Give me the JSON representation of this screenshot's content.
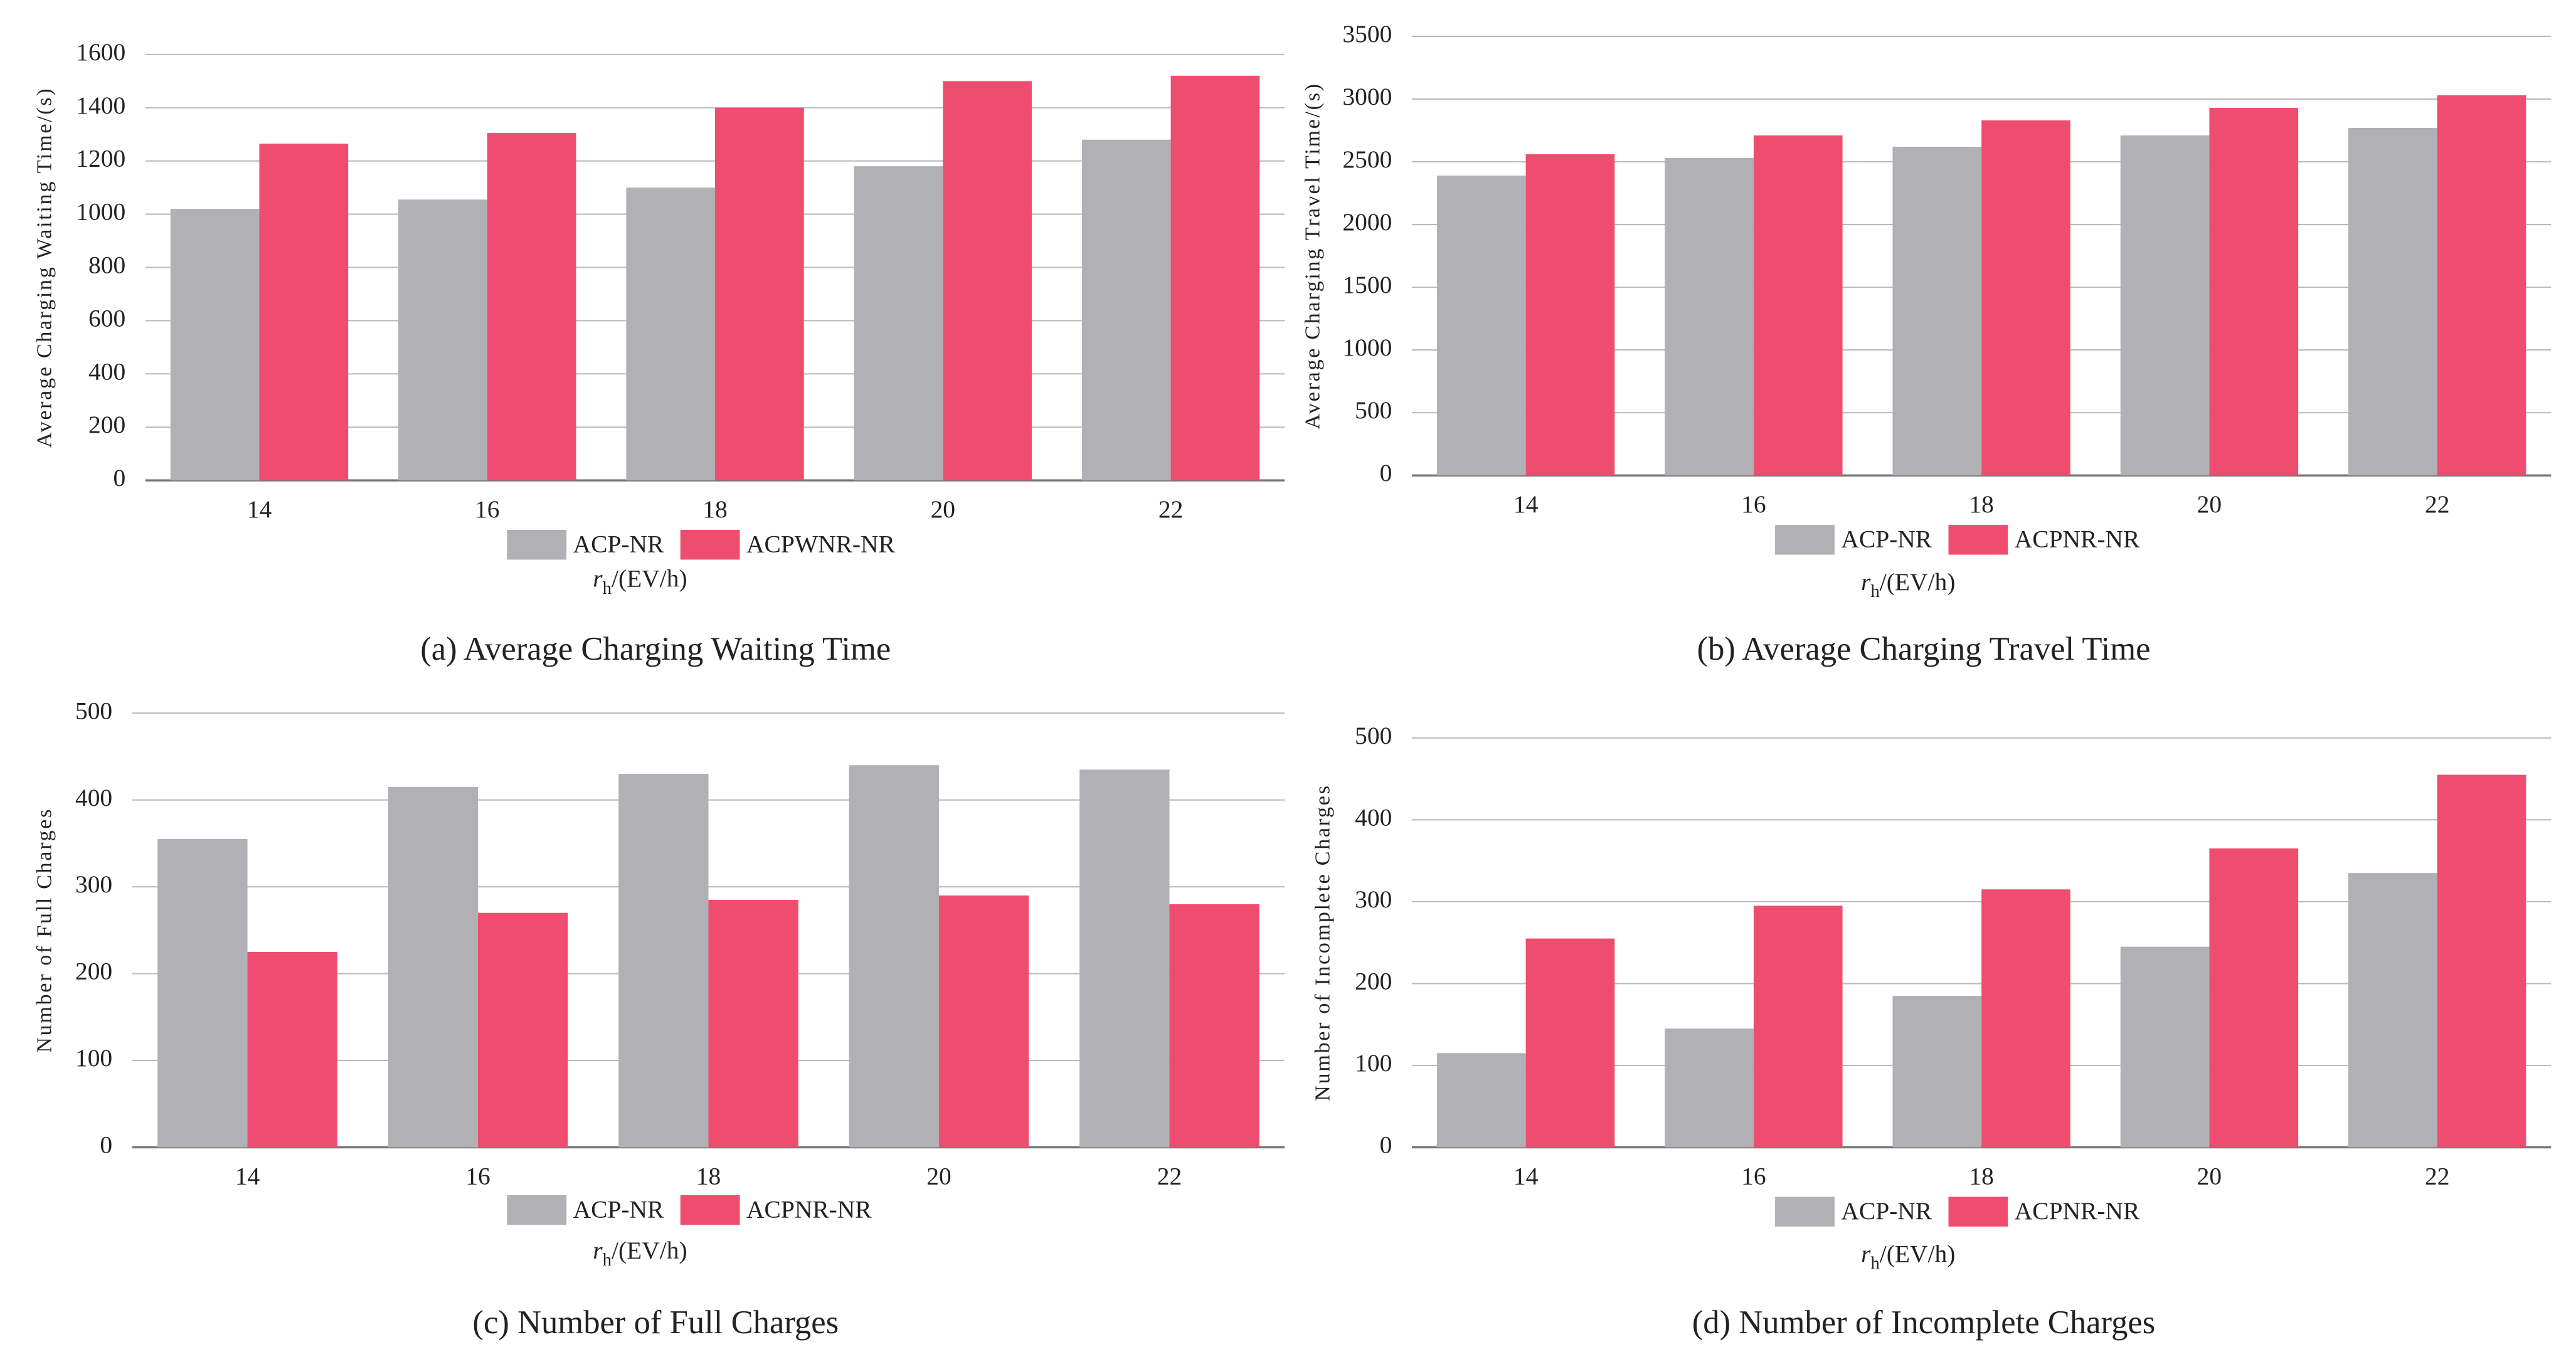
{
  "chart_data": [
    {
      "type": "bar",
      "caption": "(a) Average Charging Waiting Time",
      "y_label": "Average Charging Waiting Time/(s)",
      "x_label_var": "r",
      "x_label_sub": "h",
      "x_label_unit": "/(EV/h)",
      "categories": [
        "14",
        "16",
        "18",
        "20",
        "22"
      ],
      "series": [
        {
          "name": "ACP-NR",
          "color": "#b1b0b5",
          "values": [
            1020,
            1055,
            1100,
            1180,
            1280
          ]
        },
        {
          "name": "ACPWNR-NR",
          "color": "#ee4d6f",
          "values": [
            1265,
            1305,
            1400,
            1500,
            1520
          ]
        }
      ],
      "ylim": [
        0,
        1600
      ],
      "yticks": [
        0,
        200,
        400,
        600,
        800,
        1000,
        1200,
        1400,
        1600
      ],
      "grid": true
    },
    {
      "type": "bar",
      "caption": "(b) Average Charging Travel Time",
      "y_label": "Average Charging Travel Time/(s)",
      "x_label_var": "r",
      "x_label_sub": "h",
      "x_label_unit": "/(EV/h)",
      "categories": [
        "14",
        "16",
        "18",
        "20",
        "22"
      ],
      "series": [
        {
          "name": "ACP-NR",
          "color": "#b1b0b5",
          "values": [
            2390,
            2530,
            2620,
            2710,
            2770
          ]
        },
        {
          "name": "ACPNR-NR",
          "color": "#ee4d6f",
          "values": [
            2560,
            2710,
            2830,
            2930,
            3030
          ]
        }
      ],
      "ylim": [
        0,
        3500
      ],
      "yticks": [
        0,
        500,
        1000,
        1500,
        2000,
        2500,
        3000,
        3500
      ],
      "grid": true
    },
    {
      "type": "bar",
      "caption": "(c) Number of Full Charges",
      "y_label": "Number of Full Charges",
      "x_label_var": "r",
      "x_label_sub": "h",
      "x_label_unit": "/(EV/h)",
      "categories": [
        "14",
        "16",
        "18",
        "20",
        "22"
      ],
      "series": [
        {
          "name": "ACP-NR",
          "color": "#b1b0b5",
          "values": [
            355,
            415,
            430,
            440,
            435
          ]
        },
        {
          "name": "ACPNR-NR",
          "color": "#ee4d6f",
          "values": [
            225,
            270,
            285,
            290,
            280
          ]
        }
      ],
      "ylim": [
        0,
        500
      ],
      "yticks": [
        0,
        100,
        200,
        300,
        400,
        500
      ],
      "grid": true
    },
    {
      "type": "bar",
      "caption": "(d) Number of Incomplete Charges",
      "y_label": "Number of Incomplete Charges",
      "x_label_var": "r",
      "x_label_sub": "h",
      "x_label_unit": "/(EV/h)",
      "categories": [
        "14",
        "16",
        "18",
        "20",
        "22"
      ],
      "series": [
        {
          "name": "ACP-NR",
          "color": "#b1b0b5",
          "values": [
            115,
            145,
            185,
            245,
            335
          ]
        },
        {
          "name": "ACPNR-NR",
          "color": "#ee4d6f",
          "values": [
            255,
            295,
            315,
            365,
            455
          ]
        }
      ],
      "ylim": [
        0,
        500
      ],
      "yticks": [
        0,
        100,
        200,
        300,
        400,
        500
      ],
      "grid": true
    }
  ]
}
